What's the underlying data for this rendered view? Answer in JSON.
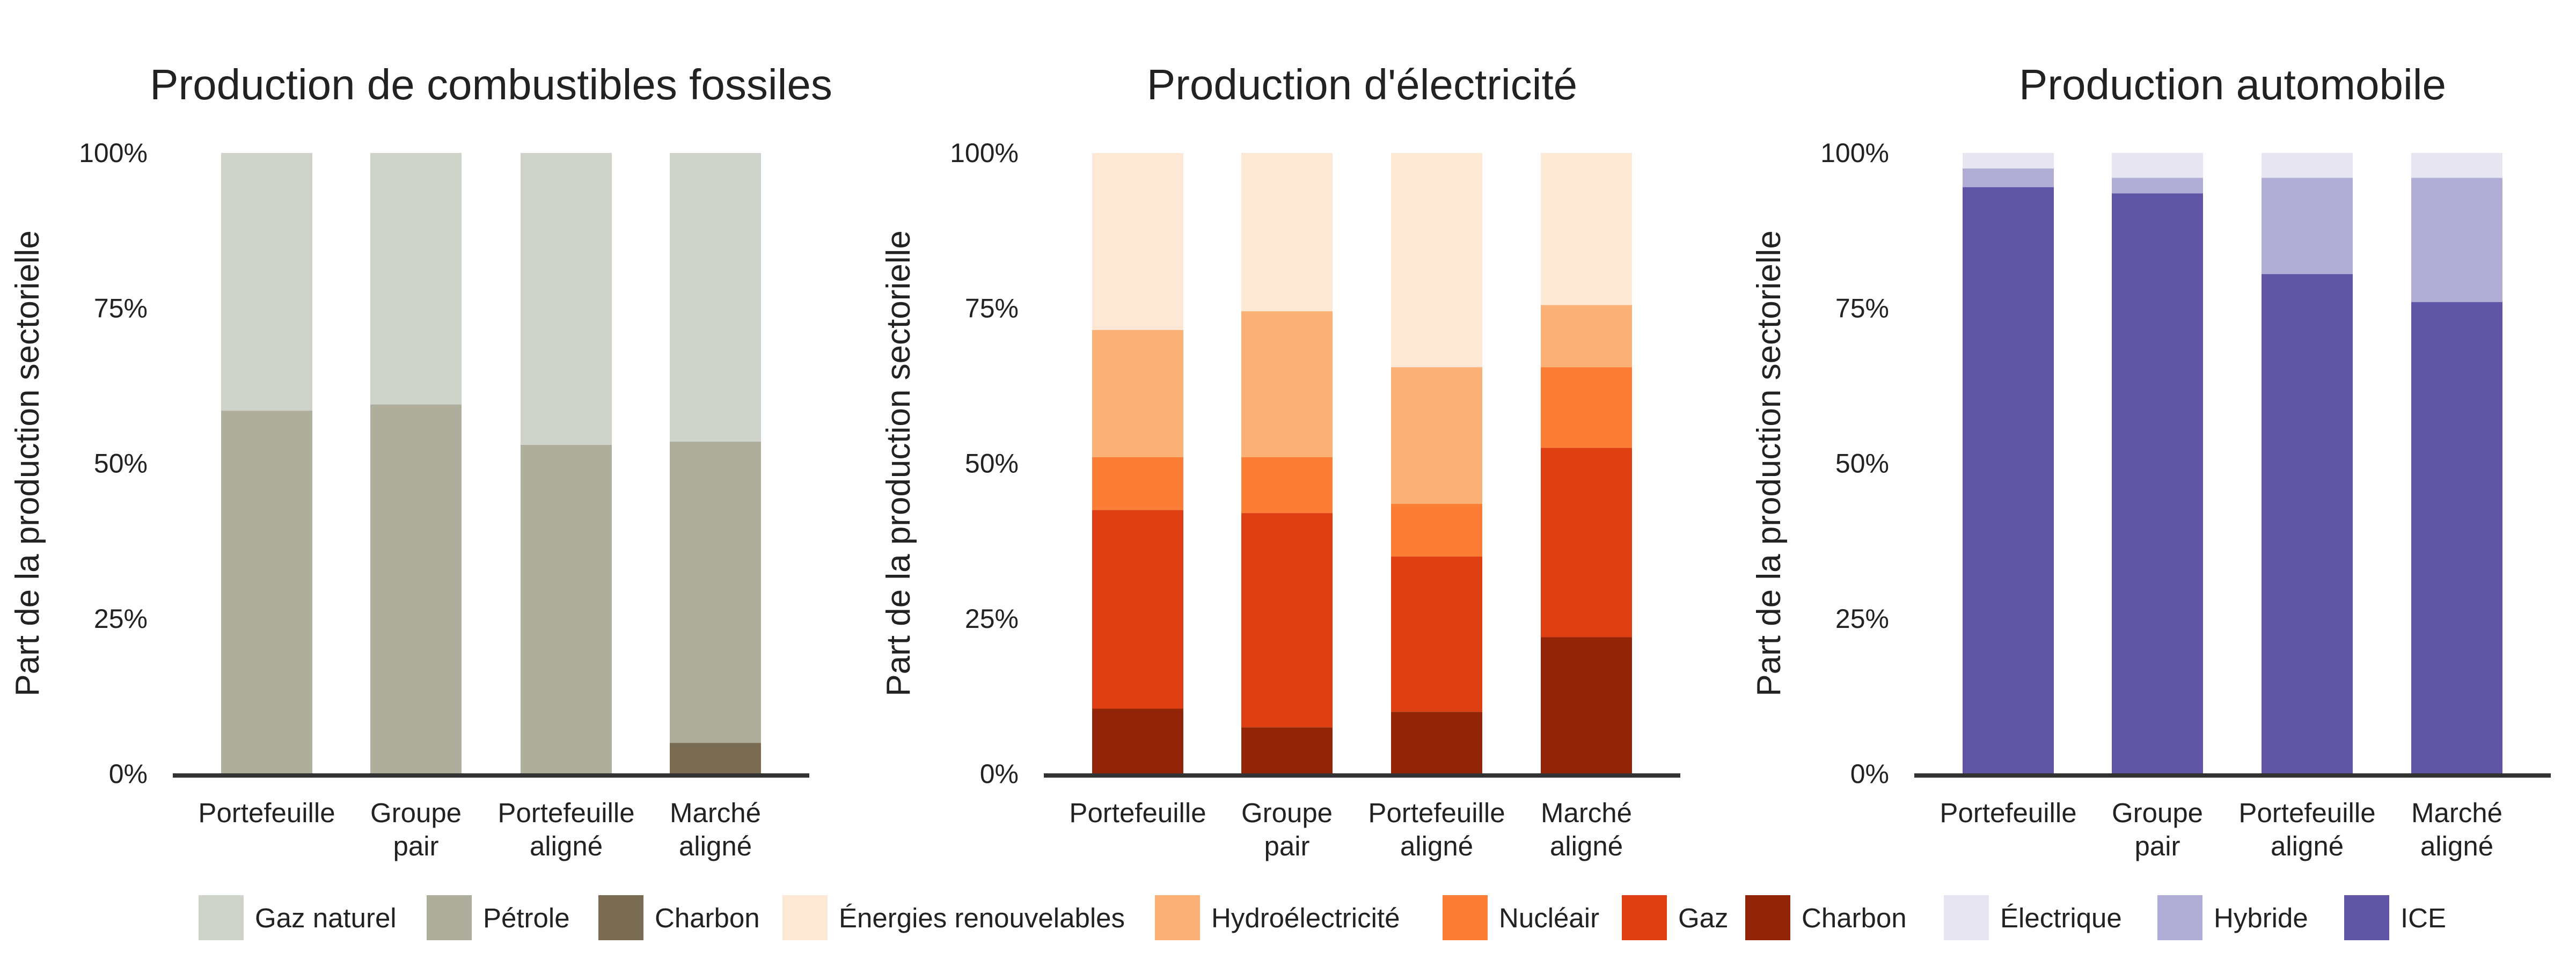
{
  "chart_data": [
    {
      "type": "bar",
      "stacked": true,
      "title": "Production de combustibles fossiles",
      "ylabel": "Part de la production sectorielle",
      "xlabel": "",
      "ylim": [
        0,
        100
      ],
      "yticks": [
        "0%",
        "25%",
        "50%",
        "75%",
        "100%"
      ],
      "categories": [
        [
          "Portefeuille"
        ],
        [
          "Groupe",
          "pair"
        ],
        [
          "Portefeuille",
          "aligné"
        ],
        [
          "Marché",
          "aligné"
        ]
      ],
      "series": [
        {
          "name": "Charbon",
          "color": "#7a6b53",
          "values": [
            0,
            0,
            0,
            5
          ]
        },
        {
          "name": "Pétrole",
          "color": "#afad9c",
          "values": [
            58.5,
            59.5,
            53,
            48.5
          ]
        },
        {
          "name": "Gaz naturel",
          "color": "#cfd4ca",
          "values": [
            41.5,
            40.5,
            47,
            46.5
          ]
        }
      ]
    },
    {
      "type": "bar",
      "stacked": true,
      "title": "Production d'électricité",
      "ylabel": "Part de la production sectorielle",
      "xlabel": "",
      "ylim": [
        0,
        100
      ],
      "yticks": [
        "0%",
        "25%",
        "50%",
        "75%",
        "100%"
      ],
      "categories": [
        [
          "Portefeuille"
        ],
        [
          "Groupe",
          "pair"
        ],
        [
          "Portefeuille",
          "aligné"
        ],
        [
          "Marché",
          "aligné"
        ]
      ],
      "series": [
        {
          "name": "Charbon",
          "color": "#922507",
          "values": [
            10.5,
            7.5,
            10,
            22
          ]
        },
        {
          "name": "Gaz",
          "color": "#de3f12",
          "values": [
            32,
            34.5,
            25,
            30.5
          ]
        },
        {
          "name": "Nucléair",
          "color": "#fb7d36",
          "values": [
            8.5,
            9,
            8.5,
            13
          ]
        },
        {
          "name": "Hydroélectricité",
          "color": "#fbb075",
          "values": [
            20.5,
            23.5,
            22,
            10
          ]
        },
        {
          "name": "Énergies renouvelables",
          "color": "#fde7d5",
          "values": [
            28.5,
            25.5,
            34.5,
            24.5
          ]
        }
      ]
    },
    {
      "type": "bar",
      "stacked": true,
      "title": "Production automobile",
      "ylabel": "Part de la production sectorielle",
      "xlabel": "",
      "ylim": [
        0,
        100
      ],
      "yticks": [
        "0%",
        "25%",
        "50%",
        "75%",
        "100%"
      ],
      "categories": [
        [
          "Portefeuille"
        ],
        [
          "Groupe",
          "pair"
        ],
        [
          "Portefeuille",
          "aligné"
        ],
        [
          "Marché",
          "aligné"
        ]
      ],
      "series": [
        {
          "name": "ICE",
          "color": "#6156a5",
          "values": [
            94.5,
            93.5,
            80.5,
            76
          ]
        },
        {
          "name": "Hybride",
          "color": "#b0aed6",
          "values": [
            3,
            2.5,
            15.5,
            20
          ]
        },
        {
          "name": "Électrique",
          "color": "#e6e5f1",
          "values": [
            2.5,
            4,
            4,
            4
          ]
        }
      ]
    }
  ],
  "legend": [
    {
      "label": "Gaz naturel",
      "color": "#cfd4ca"
    },
    {
      "label": "Pétrole",
      "color": "#afad9c"
    },
    {
      "label": "Charbon",
      "color": "#7a6b53"
    },
    {
      "label": "Énergies renouvelables",
      "color": "#fde7d5"
    },
    {
      "label": "Hydroélectricité",
      "color": "#fbb075"
    },
    {
      "label": "Nucléair",
      "color": "#fb7d36"
    },
    {
      "label": "Gaz",
      "color": "#de3f12"
    },
    {
      "label": "Charbon",
      "color": "#922507"
    },
    {
      "label": "Électrique",
      "color": "#e6e5f1"
    },
    {
      "label": "Hybride",
      "color": "#b0aed6"
    },
    {
      "label": "ICE",
      "color": "#6156a5"
    }
  ]
}
